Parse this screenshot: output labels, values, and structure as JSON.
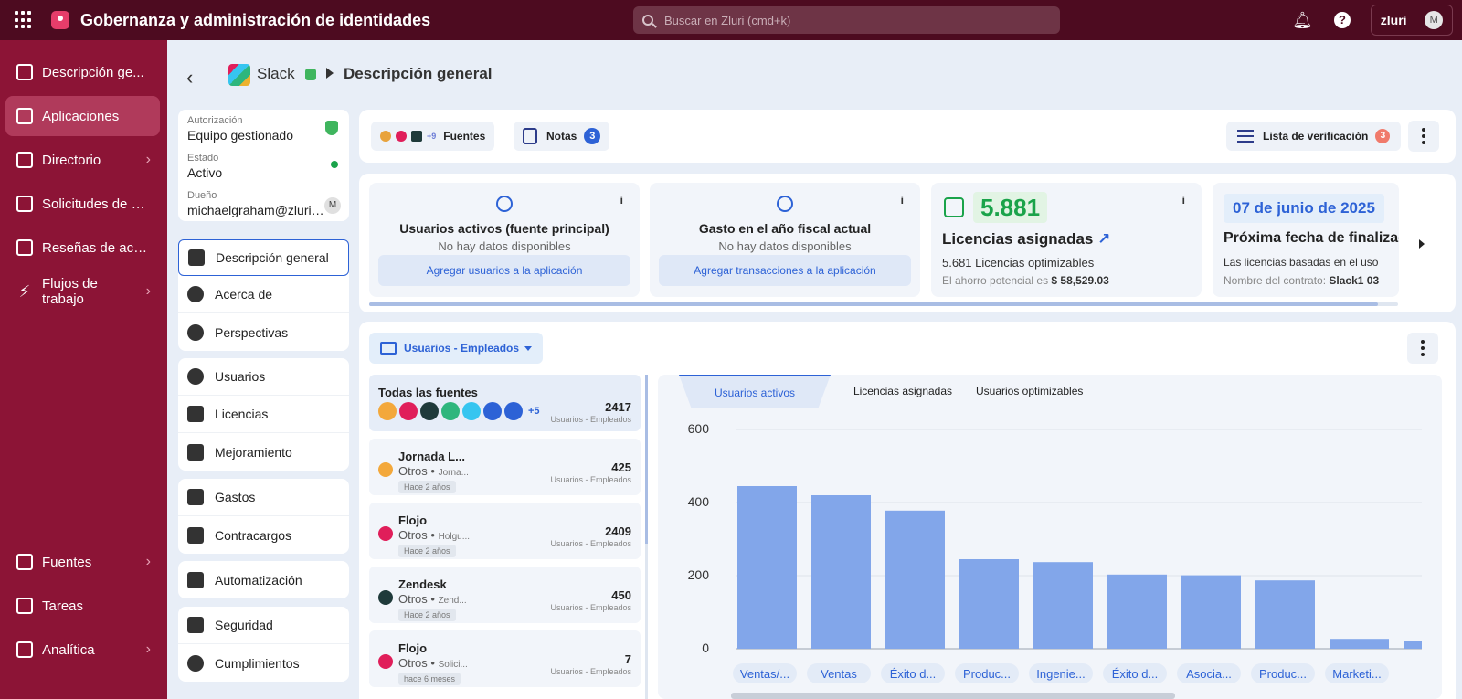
{
  "topbar": {
    "app_title": "Gobernanza y administración de identidades",
    "search_placeholder": "Buscar en Zluri (cmd+k)",
    "account_logo": "zluri",
    "avatar": "M"
  },
  "leftnav": {
    "items": [
      {
        "label": "Descripción ge...",
        "icon": "dashboard-icon",
        "active": false,
        "chevron": false
      },
      {
        "label": "Aplicaciones",
        "icon": "apps-icon",
        "active": true,
        "chevron": false
      },
      {
        "label": "Directorio",
        "icon": "directory-icon",
        "active": false,
        "chevron": true
      },
      {
        "label": "Solicitudes de a...",
        "icon": "requests-icon",
        "active": false,
        "chevron": false
      },
      {
        "label": "Reseñas de acc...",
        "icon": "reviews-icon",
        "active": false,
        "chevron": false
      },
      {
        "label": "Flujos de trabajo",
        "icon": "bolt-icon",
        "active": false,
        "chevron": true
      },
      {
        "label": "Fuentes",
        "icon": "sources-icon",
        "active": false,
        "chevron": true
      },
      {
        "label": "Tareas",
        "icon": "tasks-icon",
        "active": false,
        "chevron": false
      },
      {
        "label": "Analítica",
        "icon": "analytics-icon",
        "active": false,
        "chevron": true
      }
    ]
  },
  "breadcrumb": {
    "app_name": "Slack",
    "page": "Descripción general"
  },
  "info": {
    "auth_label": "Autorización",
    "auth_value": "Equipo gestionado",
    "state_label": "Estado",
    "state_value": "Activo",
    "owner_label": "Dueño",
    "owner_value": "michaelgraham@zluri.dev",
    "owner_avatar": "M"
  },
  "subnav": {
    "group1": [
      "Descripción general",
      "Acerca de",
      "Perspectivas"
    ],
    "group2": [
      "Usuarios",
      "Licencias",
      "Mejoramiento"
    ],
    "group3": [
      "Gastos",
      "Contracargos"
    ],
    "group4": [
      "Automatización"
    ],
    "group5": [
      "Seguridad",
      "Cumplimientos"
    ]
  },
  "toolbar": {
    "sources_more": "+9",
    "sources_label": "Fuentes",
    "notes_label": "Notas",
    "notes_count": "3",
    "checklist_label": "Lista de verificación",
    "checklist_count": "3"
  },
  "stats": {
    "active_users": {
      "title": "Usuarios activos (fuente principal)",
      "sub": "No hay datos disponibles",
      "button": "Agregar usuarios a la aplicación",
      "info": "i"
    },
    "spend": {
      "title": "Gasto en el año fiscal actual",
      "sub": "No hay datos disponibles",
      "button": "Agregar transacciones a la aplicación",
      "info": "i"
    },
    "licenses": {
      "value": "5.881",
      "title": "Licencias asignadas",
      "arrow": "↗",
      "line1": "5.681 Licencias optimizables",
      "line2_prefix": "El ahorro potencial es",
      "line2_value": "$ 58,529.03",
      "info": "i"
    },
    "contract": {
      "date": "07 de junio de 2025",
      "title": "Próxima fecha de finalización",
      "line1": "Las licencias basadas en el uso",
      "line2_prefix": "Nombre del contrato:",
      "line2_value": "Slack1 03"
    }
  },
  "users_panel": {
    "dropdown_label": "Usuarios - Empleados",
    "all_sources": {
      "name": "Todas las fuentes",
      "more": "+5",
      "count": "2417",
      "count_label": "Usuarios - Empleados"
    },
    "sources": [
      {
        "name": "Jornada L...",
        "type": "Otros",
        "sub": "Jorna...",
        "age": "Hace 2 años",
        "count": "425",
        "count_label": "Usuarios - Empleados"
      },
      {
        "name": "Flojo",
        "type": "Otros",
        "sub": "Holgu...",
        "age": "Hace 2 años",
        "count": "2409",
        "count_label": "Usuarios - Empleados"
      },
      {
        "name": "Zendesk",
        "type": "Otros",
        "sub": "Zend...",
        "age": "Hace 2 años",
        "count": "450",
        "count_label": "Usuarios - Empleados"
      },
      {
        "name": "Flojo",
        "type": "Otros",
        "sub": "Solici...",
        "age": "hace 6 meses",
        "count": "7",
        "count_label": "Usuarios - Empleados"
      }
    ]
  },
  "chart_tabs": [
    "Usuarios activos",
    "Licencias asignadas",
    "Usuarios optimizables"
  ],
  "chart_data": {
    "type": "bar",
    "categories": [
      "Ventas/...",
      "Ventas",
      "Éxito d...",
      "Produc...",
      "Ingenie...",
      "Éxito d...",
      "Asocia...",
      "Produc...",
      "Marketi...",
      ""
    ],
    "values": [
      445,
      420,
      378,
      245,
      237,
      203,
      201,
      187,
      27,
      20
    ],
    "yticks": [
      0,
      200,
      400,
      600
    ],
    "ylim": [
      0,
      600
    ],
    "bar_color": "#82a6ea"
  }
}
